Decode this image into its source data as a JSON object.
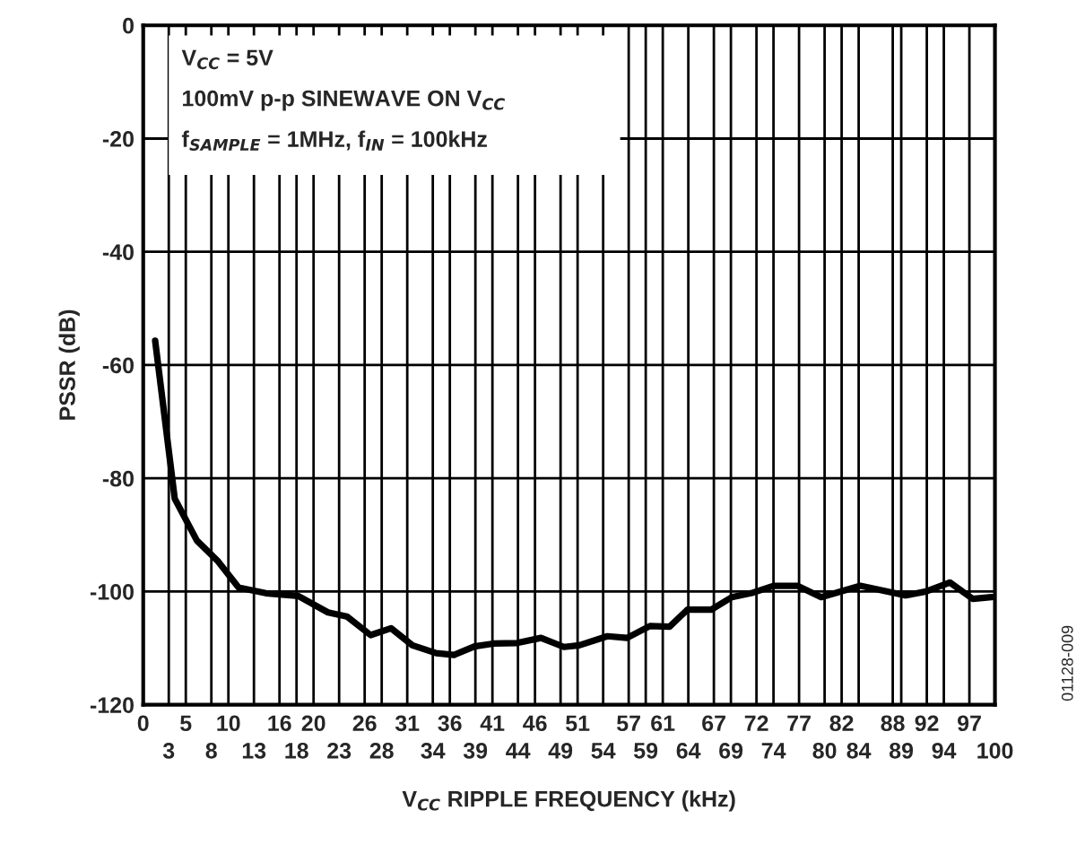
{
  "chart_data": {
    "type": "line",
    "xlabel": "V$_{CC}$ RIPPLE FREQUENCY (kHz)",
    "ylabel": "PSSR (dB)",
    "annotations": [
      "V$_{CC}$ = 5V",
      "100mV p-p SINEWAVE ON V$_{CC}$",
      "f$_{SAMPLE}$ = 1MHz, f$_{IN}$ = 100kHz",
      "01128-009"
    ],
    "series": [
      {
        "color": "#000000",
        "x": [
          1.4,
          3.7,
          6.3,
          8.8,
          11.2,
          14.4,
          18.2,
          21.7,
          23.9,
          26.7,
          29.1,
          31.6,
          34.4,
          36.5,
          38.9,
          41.1,
          43.9,
          46.7,
          49.4,
          51.2,
          54.5,
          56.8,
          59.5,
          61.8,
          63.9,
          66.7,
          69.1,
          71.6,
          74.0,
          76.8,
          79.6,
          84.2,
          89.5,
          91.9,
          94.7,
          97.4,
          99.6
        ],
        "values": [
          -55.7,
          -83.6,
          -91,
          -94.7,
          -99.3,
          -100.3,
          -100.8,
          -103.7,
          -104.4,
          -107.7,
          -106.5,
          -109.5,
          -110.9,
          -111.2,
          -109.7,
          -109.2,
          -109.1,
          -108.2,
          -109.8,
          -109.5,
          -107.9,
          -108.2,
          -106.1,
          -106.2,
          -103.2,
          -103.2,
          -101,
          -100.2,
          -99,
          -99,
          -101,
          -99,
          -100.7,
          -100,
          -98.4,
          -101.3,
          -101
        ]
      }
    ],
    "xlim": [
      0,
      100
    ],
    "ylim": [
      -120,
      0
    ],
    "yticks": [
      -120,
      -100,
      -80,
      -60,
      -40,
      -20,
      0
    ],
    "xticks": [
      0,
      5,
      10,
      16,
      20,
      26,
      31,
      36,
      41,
      46,
      51,
      57,
      61,
      67,
      72,
      77,
      82,
      88,
      92,
      97
    ],
    "x2lim": [
      0,
      100
    ],
    "x2ticks": [
      3,
      8,
      13,
      18,
      23,
      28,
      34,
      39,
      44,
      49,
      54,
      59,
      64,
      69,
      74,
      80,
      84,
      89,
      94,
      100
    ],
    "grid": true,
    "line_style": "solid"
  }
}
